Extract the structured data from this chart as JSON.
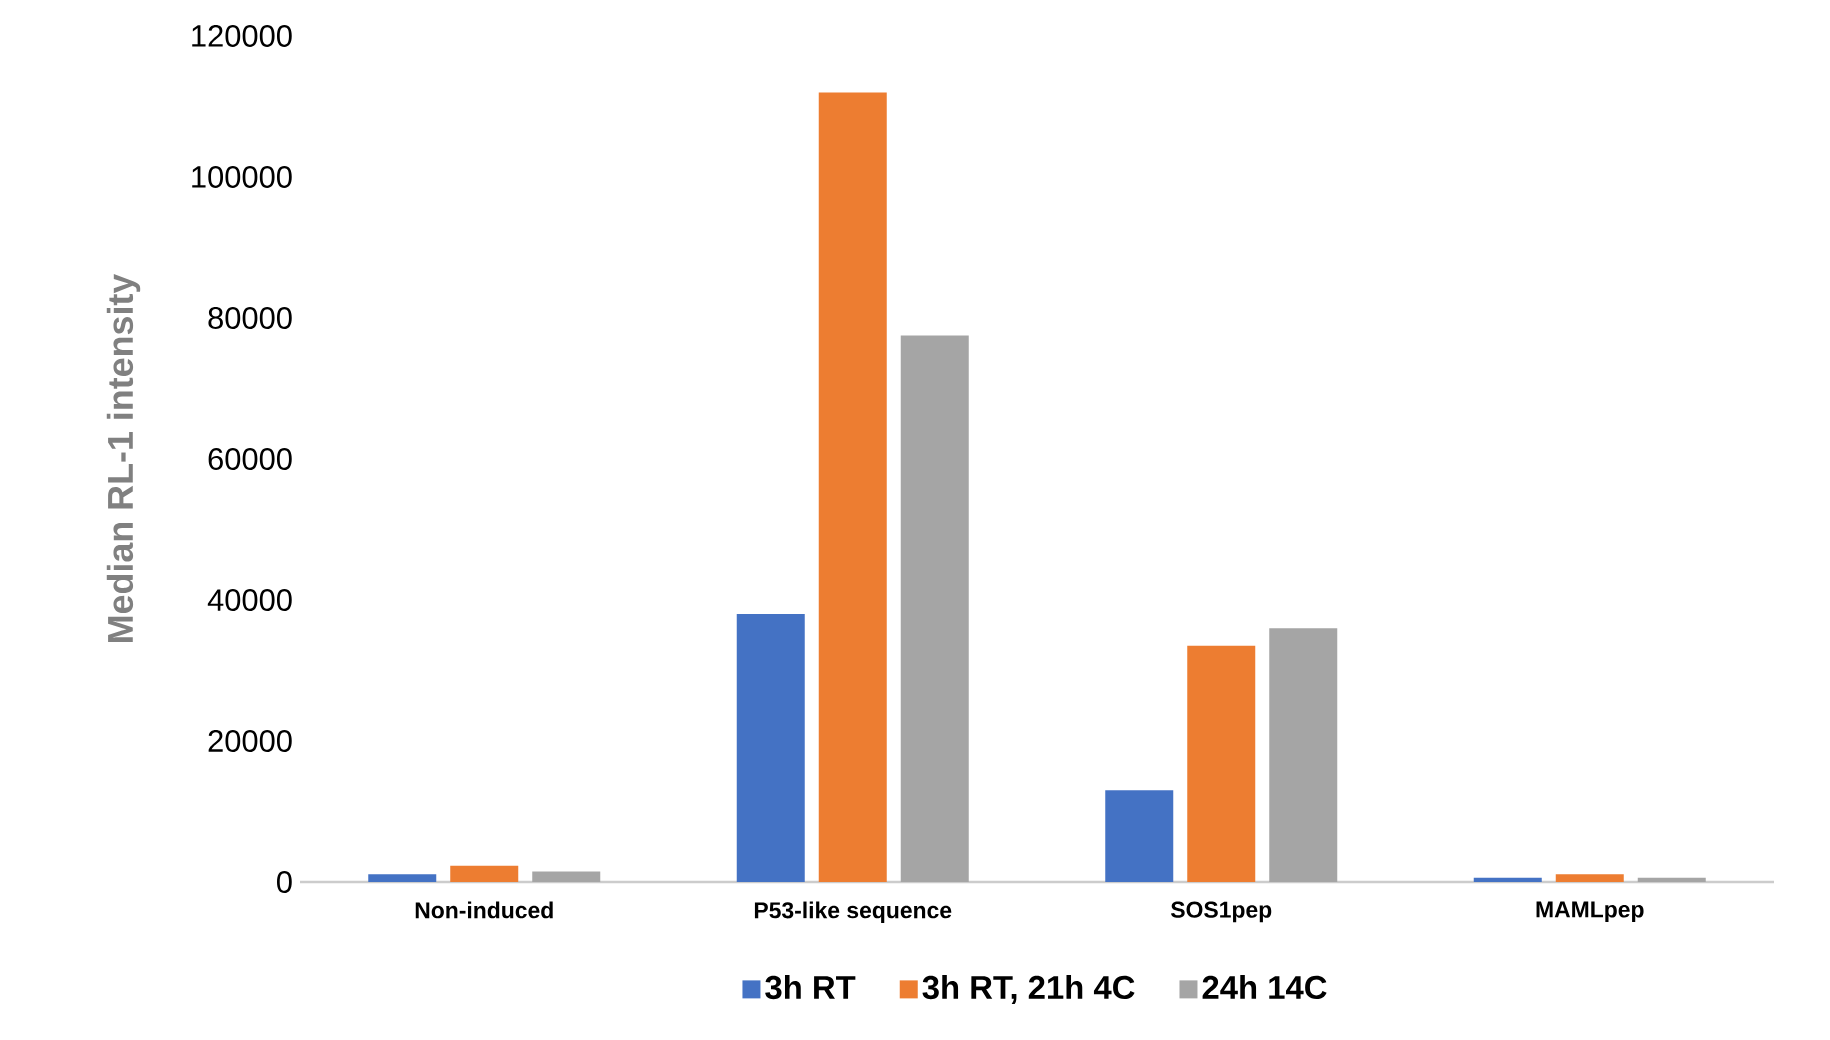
{
  "chart_data": {
    "type": "bar",
    "ylabel": "Median RL-1 intensity",
    "categories": [
      "Non-induced",
      "P53-like sequence",
      "SOS1pep",
      "MAMLpep"
    ],
    "series": [
      {
        "name": "3h RT",
        "color": "#4472c4",
        "values": [
          1100,
          38000,
          13000,
          600
        ]
      },
      {
        "name": "3h RT, 21h 4C",
        "color": "#ed7d31",
        "values": [
          2300,
          112000,
          33500,
          1100
        ]
      },
      {
        "name": "24h 14C",
        "color": "#a5a5a5",
        "values": [
          1500,
          77500,
          36000,
          600
        ]
      }
    ],
    "ylim": [
      0,
      120000
    ],
    "yticks": [
      0,
      20000,
      40000,
      60000,
      80000,
      100000,
      120000
    ],
    "legend": "bottom"
  }
}
